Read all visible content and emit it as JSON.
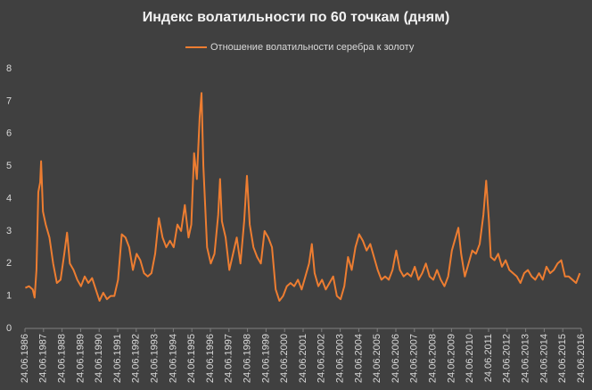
{
  "chart_data": {
    "type": "line",
    "title": "Индекс волатильности по 60 точкам (дням)",
    "legend": "top",
    "grid": false,
    "x": [
      1986.5,
      1986.7,
      1986.9,
      1987.0,
      1987.1,
      1987.2,
      1987.3,
      1987.35,
      1987.45,
      1987.6,
      1987.8,
      1988.0,
      1988.2,
      1988.4,
      1988.6,
      1988.75,
      1988.9,
      1989.1,
      1989.3,
      1989.5,
      1989.7,
      1989.9,
      1990.1,
      1990.3,
      1990.5,
      1990.7,
      1990.9,
      1991.1,
      1991.3,
      1991.5,
      1991.7,
      1991.9,
      1992.1,
      1992.3,
      1992.5,
      1992.7,
      1992.9,
      1993.1,
      1993.3,
      1993.5,
      1993.7,
      1993.9,
      1994.1,
      1994.3,
      1994.5,
      1994.7,
      1994.9,
      1995.1,
      1995.3,
      1995.45,
      1995.6,
      1995.75,
      1995.9,
      1996.0,
      1996.1,
      1996.3,
      1996.5,
      1996.7,
      1996.9,
      1997.0,
      1997.1,
      1997.3,
      1997.5,
      1997.7,
      1997.9,
      1998.1,
      1998.3,
      1998.45,
      1998.6,
      1998.8,
      1999.0,
      1999.2,
      1999.4,
      1999.6,
      1999.8,
      2000.0,
      2000.2,
      2000.4,
      2000.6,
      2000.8,
      2001.0,
      2001.2,
      2001.4,
      2001.6,
      2001.8,
      2001.95,
      2002.1,
      2002.3,
      2002.5,
      2002.7,
      2002.9,
      2003.1,
      2003.3,
      2003.5,
      2003.7,
      2003.9,
      2004.1,
      2004.3,
      2004.5,
      2004.7,
      2004.9,
      2005.1,
      2005.3,
      2005.5,
      2005.7,
      2005.9,
      2006.1,
      2006.3,
      2006.5,
      2006.7,
      2006.9,
      2007.1,
      2007.3,
      2007.5,
      2007.7,
      2007.9,
      2008.1,
      2008.3,
      2008.5,
      2008.7,
      2008.9,
      2009.1,
      2009.3,
      2009.5,
      2009.7,
      2009.85,
      2010.0,
      2010.2,
      2010.4,
      2010.6,
      2010.8,
      2011.0,
      2011.2,
      2011.35,
      2011.5,
      2011.6,
      2011.8,
      2012.0,
      2012.2,
      2012.4,
      2012.6,
      2012.8,
      2013.0,
      2013.2,
      2013.4,
      2013.6,
      2013.8,
      2014.0,
      2014.2,
      2014.4,
      2014.6,
      2014.8,
      2015.0,
      2015.2,
      2015.4,
      2015.6,
      2015.8,
      2016.0,
      2016.2,
      2016.4
    ],
    "series": [
      {
        "name": "Отношение волатильности серебра к золоту",
        "color": "#ed7d31",
        "values": [
          1.25,
          1.3,
          1.2,
          0.95,
          1.8,
          4.2,
          4.5,
          5.15,
          3.6,
          3.2,
          2.8,
          2.0,
          1.4,
          1.5,
          2.3,
          2.95,
          2.0,
          1.8,
          1.5,
          1.3,
          1.6,
          1.4,
          1.55,
          1.2,
          0.85,
          1.1,
          0.9,
          1.0,
          1.0,
          1.5,
          2.9,
          2.8,
          2.5,
          1.8,
          2.3,
          2.1,
          1.7,
          1.6,
          1.7,
          2.3,
          3.4,
          2.8,
          2.5,
          2.7,
          2.5,
          3.2,
          3.0,
          3.8,
          2.8,
          3.2,
          5.4,
          4.6,
          6.5,
          7.25,
          5.0,
          2.5,
          2.0,
          2.3,
          3.5,
          4.6,
          3.3,
          2.8,
          1.8,
          2.3,
          2.8,
          2.0,
          3.3,
          4.7,
          3.2,
          2.5,
          2.2,
          2.0,
          3.0,
          2.8,
          2.5,
          1.2,
          0.85,
          1.0,
          1.3,
          1.4,
          1.3,
          1.5,
          1.2,
          1.6,
          2.0,
          2.6,
          1.7,
          1.3,
          1.5,
          1.2,
          1.4,
          1.6,
          1.0,
          0.9,
          1.3,
          2.2,
          1.8,
          2.5,
          2.9,
          2.7,
          2.4,
          2.6,
          2.2,
          1.8,
          1.5,
          1.6,
          1.5,
          1.8,
          2.4,
          1.8,
          1.6,
          1.7,
          1.6,
          1.9,
          1.5,
          1.7,
          2.0,
          1.6,
          1.5,
          1.8,
          1.5,
          1.3,
          1.6,
          2.4,
          2.8,
          3.1,
          2.3,
          1.6,
          2.0,
          2.4,
          2.3,
          2.6,
          3.5,
          4.55,
          3.3,
          2.2,
          2.1,
          2.3,
          1.9,
          2.1,
          1.8,
          1.7,
          1.6,
          1.4,
          1.7,
          1.8,
          1.6,
          1.5,
          1.7,
          1.5,
          1.9,
          1.7,
          1.8,
          2.0,
          2.1,
          1.6,
          1.6,
          1.5,
          1.4,
          1.7
        ]
      }
    ],
    "ylim": [
      0,
      8
    ],
    "yticks": [
      0,
      1,
      2,
      3,
      4,
      5,
      6,
      7,
      8
    ],
    "xlim": [
      1986.48,
      2016.48
    ],
    "xticks": [
      {
        "value": 1986.48,
        "label": "24.06.1986"
      },
      {
        "value": 1987.48,
        "label": "24.06.1987"
      },
      {
        "value": 1988.48,
        "label": "24.06.1988"
      },
      {
        "value": 1989.48,
        "label": "24.06.1989"
      },
      {
        "value": 1990.48,
        "label": "24.06.1990"
      },
      {
        "value": 1991.48,
        "label": "24.06.1991"
      },
      {
        "value": 1992.48,
        "label": "24.06.1992"
      },
      {
        "value": 1993.48,
        "label": "24.06.1993"
      },
      {
        "value": 1994.48,
        "label": "24.06.1994"
      },
      {
        "value": 1995.48,
        "label": "24.06.1995"
      },
      {
        "value": 1996.48,
        "label": "24.06.1996"
      },
      {
        "value": 1997.48,
        "label": "24.06.1997"
      },
      {
        "value": 1998.48,
        "label": "24.06.1998"
      },
      {
        "value": 1999.48,
        "label": "24.06.1999"
      },
      {
        "value": 2000.48,
        "label": "24.06.2000"
      },
      {
        "value": 2001.48,
        "label": "24.06.2001"
      },
      {
        "value": 2002.48,
        "label": "24.06.2002"
      },
      {
        "value": 2003.48,
        "label": "24.06.2003"
      },
      {
        "value": 2004.48,
        "label": "24.06.2004"
      },
      {
        "value": 2005.48,
        "label": "24.06.2005"
      },
      {
        "value": 2006.48,
        "label": "24.06.2006"
      },
      {
        "value": 2007.48,
        "label": "24.06.2007"
      },
      {
        "value": 2008.48,
        "label": "24.06.2008"
      },
      {
        "value": 2009.48,
        "label": "24.06.2009"
      },
      {
        "value": 2010.48,
        "label": "24.06.2010"
      },
      {
        "value": 2011.48,
        "label": "24.06.2011"
      },
      {
        "value": 2012.48,
        "label": "24.06.2012"
      },
      {
        "value": 2013.48,
        "label": "24.06.2013"
      },
      {
        "value": 2014.48,
        "label": "24.06.2014"
      },
      {
        "value": 2015.48,
        "label": "24.06.2015"
      },
      {
        "value": 2016.48,
        "label": "24.06.2016"
      }
    ]
  }
}
